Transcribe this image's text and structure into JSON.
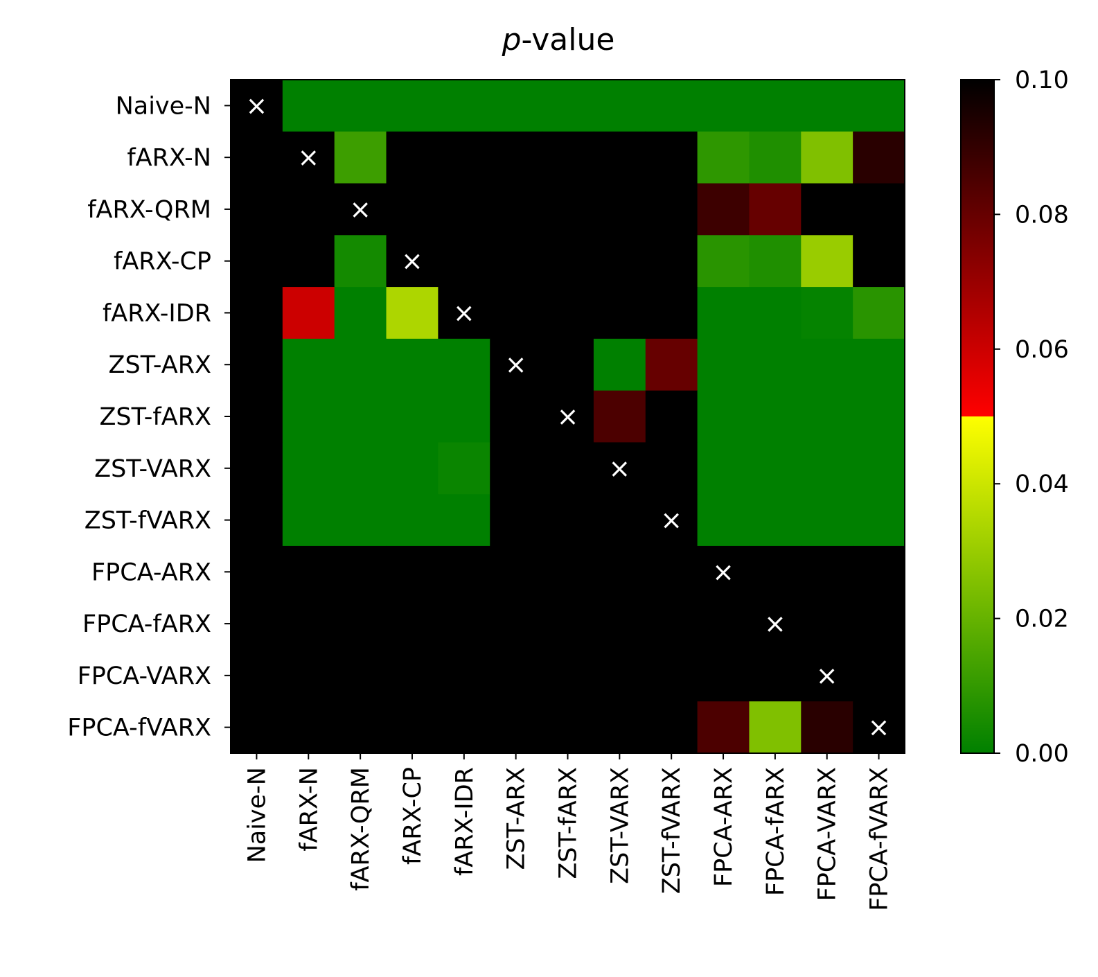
{
  "chart_data": {
    "type": "heatmap",
    "title_italic": "p",
    "title_rest": "-value",
    "labels": [
      "Naive-N",
      "fARX-N",
      "fARX-QRM",
      "fARX-CP",
      "fARX-IDR",
      "ZST-ARX",
      "ZST-fARX",
      "ZST-VARX",
      "ZST-fVARX",
      "FPCA-ARX",
      "FPCA-fARX",
      "FPCA-VARX",
      "FPCA-fVARX"
    ],
    "matrix": [
      [
        null,
        0,
        0,
        0,
        0,
        0,
        0,
        0,
        0,
        0,
        0,
        0,
        0
      ],
      [
        0.1,
        null,
        0.012,
        0.1,
        0.1,
        0.1,
        0.1,
        0.1,
        0.1,
        0.009,
        0.006,
        0.025,
        0.092
      ],
      [
        0.1,
        0.1,
        null,
        0.1,
        0.1,
        0.1,
        0.1,
        0.1,
        0.1,
        0.088,
        0.08,
        0.1,
        0.1
      ],
      [
        0.1,
        0.1,
        0.004,
        null,
        0.1,
        0.1,
        0.1,
        0.1,
        0.1,
        0.008,
        0.006,
        0.03,
        0.1
      ],
      [
        0.1,
        0.06,
        0,
        0.034,
        null,
        0.1,
        0.1,
        0.1,
        0.1,
        0,
        0,
        0.001,
        0.008
      ],
      [
        0.1,
        0,
        0,
        0,
        0,
        null,
        0.1,
        0,
        0.08,
        0,
        0,
        0,
        0
      ],
      [
        0.1,
        0,
        0,
        0,
        0,
        0.1,
        null,
        0.085,
        0.1,
        0,
        0,
        0,
        0
      ],
      [
        0.1,
        0,
        0,
        0,
        0.002,
        0.1,
        0.1,
        null,
        0.1,
        0,
        0,
        0,
        0
      ],
      [
        0.1,
        0,
        0,
        0,
        0,
        0.1,
        0.1,
        0.1,
        null,
        0,
        0,
        0,
        0
      ],
      [
        0.1,
        0.1,
        0.1,
        0.1,
        0.1,
        0.1,
        0.1,
        0.1,
        0.1,
        null,
        0.1,
        0.1,
        0.1
      ],
      [
        0.1,
        0.1,
        0.1,
        0.1,
        0.1,
        0.1,
        0.1,
        0.1,
        0.1,
        0.1,
        null,
        0.1,
        0.1
      ],
      [
        0.1,
        0.1,
        0.1,
        0.1,
        0.1,
        0.1,
        0.1,
        0.1,
        0.1,
        0.1,
        0.1,
        null,
        0.1
      ],
      [
        0.1,
        0.1,
        0.1,
        0.1,
        0.1,
        0.1,
        0.1,
        0.1,
        0.1,
        0.085,
        0.025,
        0.092,
        null
      ]
    ],
    "diagonal_marker": "×",
    "vmin": 0.0,
    "vmax": 0.1,
    "colorbar_ticks": [
      "0.00",
      "0.02",
      "0.04",
      "0.06",
      "0.08",
      "0.10"
    ],
    "colormap": {
      "low_stops": [
        {
          "v": 0.0,
          "color": "#008000"
        },
        {
          "v": 0.05,
          "color": "#ffff00"
        }
      ],
      "high_stops": [
        {
          "v": 0.05,
          "color": "#ff0000"
        },
        {
          "v": 0.1,
          "color": "#000000"
        }
      ],
      "diagonal_color": "#000000",
      "marker_color": "#ffffff",
      "frame_color": "#000000"
    }
  }
}
